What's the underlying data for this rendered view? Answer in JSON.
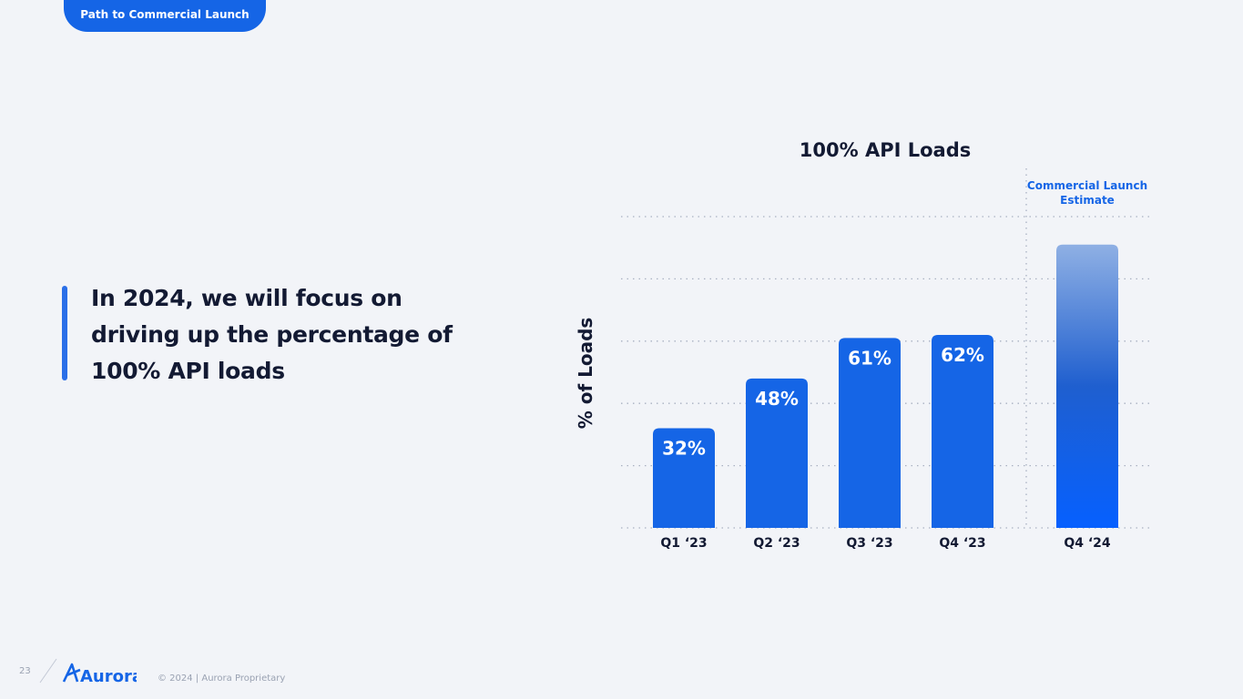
{
  "header": {
    "section_tab": "Path to Commercial Launch"
  },
  "callout": {
    "text": "In 2024, we will focus on driving up the percentage of 100% API loads"
  },
  "chart_data": {
    "type": "bar",
    "title": "100% API Loads",
    "ylabel": "% of Loads",
    "xlabel": "",
    "categories": [
      "Q1 ‘23",
      "Q2 ‘23",
      "Q3 ‘23",
      "Q4 ‘23",
      "Q4 ‘24"
    ],
    "values": [
      32,
      48,
      61,
      62,
      91
    ],
    "data_labels": [
      "32%",
      "48%",
      "61%",
      "62%",
      ""
    ],
    "ylim": [
      0,
      100
    ],
    "grid": true,
    "annotation": "Commercial Launch Estimate",
    "colors": {
      "bar": "#1565e6",
      "estimate_top": "#8fb0e4",
      "estimate_bottom": "#0660ff",
      "annotation": "#1565e6",
      "grid": "#a9b1c2"
    }
  },
  "footer": {
    "page_number": "23",
    "logo": "Aurora",
    "copyright": "© 2024 | Aurora Proprietary"
  }
}
